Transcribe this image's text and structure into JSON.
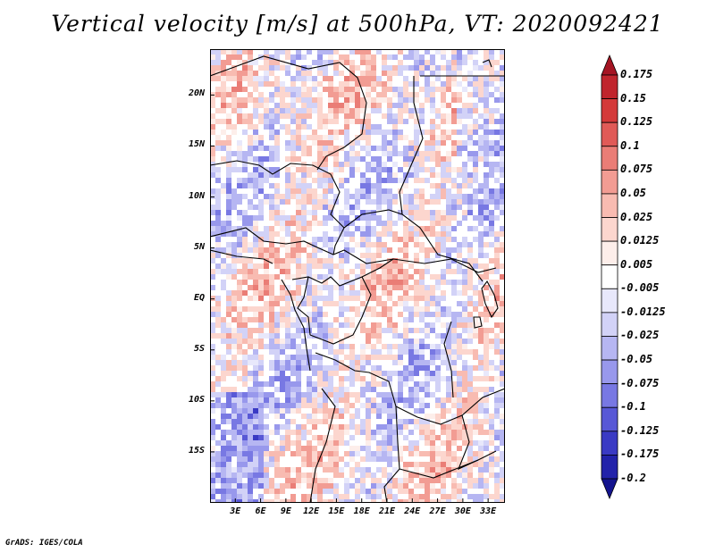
{
  "title": "Vertical velocity [m/s] at 500hPa, VT: 2020092421",
  "credit": "GrADS: IGES/COLA",
  "map": {
    "lat_labels": [
      "20N",
      "15N",
      "10N",
      "5N",
      "EQ",
      "5S",
      "10S",
      "15S"
    ],
    "lat_values": [
      20,
      15,
      10,
      5,
      0,
      -5,
      -10,
      -15
    ],
    "lon_labels": [
      "3E",
      "6E",
      "9E",
      "12E",
      "15E",
      "18E",
      "21E",
      "24E",
      "27E",
      "30E",
      "33E"
    ],
    "lon_values": [
      3,
      6,
      9,
      12,
      15,
      18,
      21,
      24,
      27,
      30,
      33
    ],
    "lat_range": [
      -20,
      24.5
    ],
    "lon_range": [
      0,
      35
    ]
  },
  "colorbar": {
    "labels": [
      "0.175",
      "0.15",
      "0.125",
      "0.1",
      "0.075",
      "0.05",
      "0.025",
      "0.0125",
      "0.005",
      "-0.005",
      "-0.0125",
      "-0.025",
      "-0.05",
      "-0.075",
      "-0.1",
      "-0.125",
      "-0.175",
      "-0.2"
    ],
    "colors": [
      "#a51523",
      "#c0252d",
      "#d43a3a",
      "#e05a57",
      "#ea7d76",
      "#f29c93",
      "#f8bbb1",
      "#fcd6ce",
      "#fdeeea",
      "#ffffff",
      "#e8e8fb",
      "#d2d2f7",
      "#b6b6f2",
      "#9898ec",
      "#7878e3",
      "#5858d6",
      "#3a3ac4",
      "#2222aa",
      "#14148e"
    ]
  }
}
